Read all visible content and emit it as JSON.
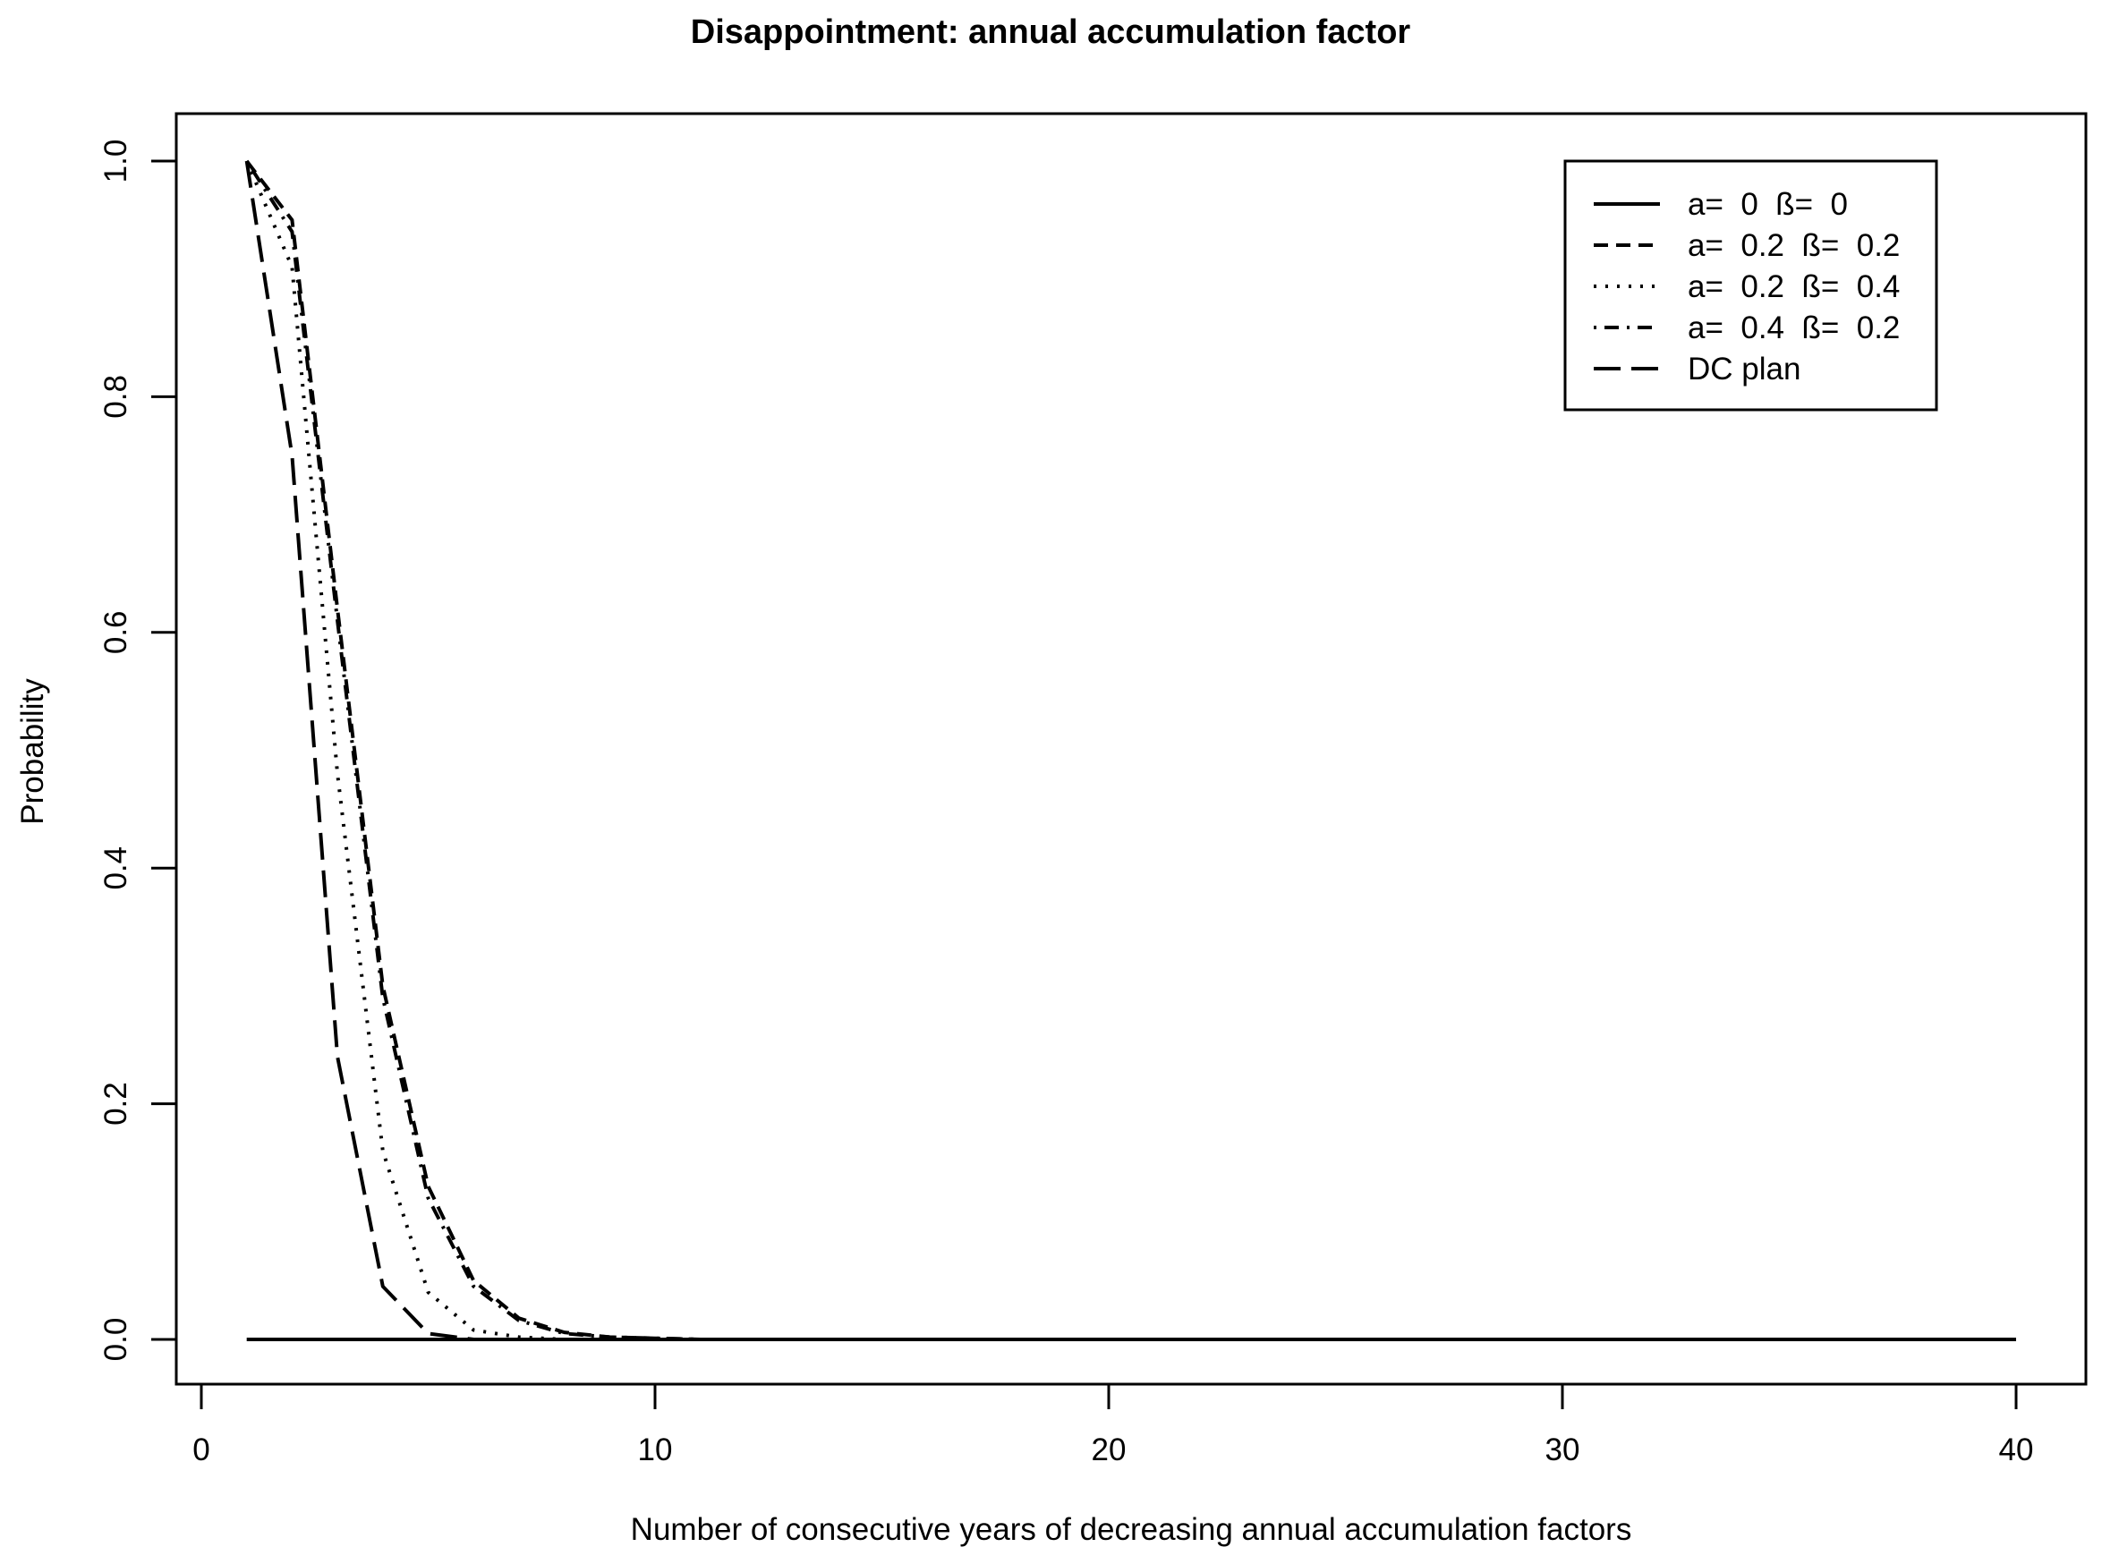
{
  "chart_data": {
    "type": "line",
    "title": "Disappointment: annual accumulation factor",
    "xlabel": "Number of consecutive years of decreasing annual accumulation factors",
    "ylabel": "Probability",
    "xlim": [
      0,
      40
    ],
    "ylim": [
      0,
      1
    ],
    "x_ticks": [
      0,
      10,
      20,
      30,
      40
    ],
    "y_ticks": [
      0.0,
      0.2,
      0.4,
      0.6,
      0.8,
      1.0
    ],
    "x_tick_labels": [
      "0",
      "10",
      "20",
      "30",
      "40"
    ],
    "y_tick_labels": [
      "0.0",
      "0.2",
      "0.4",
      "0.6",
      "0.8",
      "1.0"
    ],
    "grid": false,
    "legend_position": "top-right",
    "series": [
      {
        "name": "a=  0  ß=  0",
        "line_style": "solid",
        "x": [
          1,
          2,
          3,
          4,
          5,
          6,
          7,
          8,
          9,
          10,
          11,
          12,
          13,
          14,
          15,
          16,
          17,
          18,
          19,
          20,
          21,
          22,
          23,
          24,
          25,
          26,
          27,
          28,
          29,
          30,
          31,
          32,
          33,
          34,
          35,
          36,
          37,
          38,
          39,
          40
        ],
        "values": [
          0,
          0,
          0,
          0,
          0,
          0,
          0,
          0,
          0,
          0,
          0,
          0,
          0,
          0,
          0,
          0,
          0,
          0,
          0,
          0,
          0,
          0,
          0,
          0,
          0,
          0,
          0,
          0,
          0,
          0,
          0,
          0,
          0,
          0,
          0,
          0,
          0,
          0,
          0,
          0
        ]
      },
      {
        "name": "a=  0.2  ß=  0.2",
        "line_style": "dashed",
        "x": [
          1,
          2,
          3,
          4,
          5,
          6,
          7,
          8,
          9,
          10,
          11,
          12,
          13,
          14,
          15,
          16,
          17,
          18,
          19,
          20,
          21,
          22,
          23,
          24,
          25,
          26,
          27,
          28,
          29,
          30,
          31,
          32,
          33,
          34,
          35,
          36,
          37,
          38,
          39,
          40
        ],
        "values": [
          1.0,
          0.95,
          0.62,
          0.3,
          0.13,
          0.05,
          0.018,
          0.006,
          0.002,
          0.001,
          0,
          0,
          0,
          0,
          0,
          0,
          0,
          0,
          0,
          0,
          0,
          0,
          0,
          0,
          0,
          0,
          0,
          0,
          0,
          0,
          0,
          0,
          0,
          0,
          0,
          0,
          0,
          0,
          0,
          0
        ]
      },
      {
        "name": "a=  0.2  ß=  0.4",
        "line_style": "dotted",
        "x": [
          1,
          2,
          3,
          4,
          5,
          6,
          7,
          8,
          9,
          10,
          11,
          12,
          13,
          14,
          15,
          16,
          17,
          18,
          19,
          20,
          21,
          22,
          23,
          24,
          25,
          26,
          27,
          28,
          29,
          30,
          31,
          32,
          33,
          34,
          35,
          36,
          37,
          38,
          39,
          40
        ],
        "values": [
          1.0,
          0.91,
          0.48,
          0.16,
          0.04,
          0.008,
          0.002,
          0,
          0,
          0,
          0,
          0,
          0,
          0,
          0,
          0,
          0,
          0,
          0,
          0,
          0,
          0,
          0,
          0,
          0,
          0,
          0,
          0,
          0,
          0,
          0,
          0,
          0,
          0,
          0,
          0,
          0,
          0,
          0,
          0
        ]
      },
      {
        "name": "a=  0.4  ß=  0.2",
        "line_style": "dotdash",
        "x": [
          1,
          2,
          3,
          4,
          5,
          6,
          7,
          8,
          9,
          10,
          11,
          12,
          13,
          14,
          15,
          16,
          17,
          18,
          19,
          20,
          21,
          22,
          23,
          24,
          25,
          26,
          27,
          28,
          29,
          30,
          31,
          32,
          33,
          34,
          35,
          36,
          37,
          38,
          39,
          40
        ],
        "values": [
          1.0,
          0.94,
          0.61,
          0.29,
          0.12,
          0.045,
          0.016,
          0.005,
          0.002,
          0.001,
          0,
          0,
          0,
          0,
          0,
          0,
          0,
          0,
          0,
          0,
          0,
          0,
          0,
          0,
          0,
          0,
          0,
          0,
          0,
          0,
          0,
          0,
          0,
          0,
          0,
          0,
          0,
          0,
          0,
          0
        ]
      },
      {
        "name": "DC plan",
        "line_style": "longdash",
        "x": [
          1,
          2,
          3,
          4,
          5,
          6,
          7,
          8,
          9,
          10,
          11,
          12,
          13,
          14,
          15,
          16,
          17,
          18,
          19,
          20,
          21,
          22,
          23,
          24,
          25,
          26,
          27,
          28,
          29,
          30,
          31,
          32,
          33,
          34,
          35,
          36,
          37,
          38,
          39,
          40
        ],
        "values": [
          1.0,
          0.75,
          0.24,
          0.045,
          0.005,
          0,
          0,
          0,
          0,
          0,
          0,
          0,
          0,
          0,
          0,
          0,
          0,
          0,
          0,
          0,
          0,
          0,
          0,
          0,
          0,
          0,
          0,
          0,
          0,
          0,
          0,
          0,
          0,
          0,
          0,
          0,
          0,
          0,
          0,
          0
        ]
      }
    ]
  }
}
